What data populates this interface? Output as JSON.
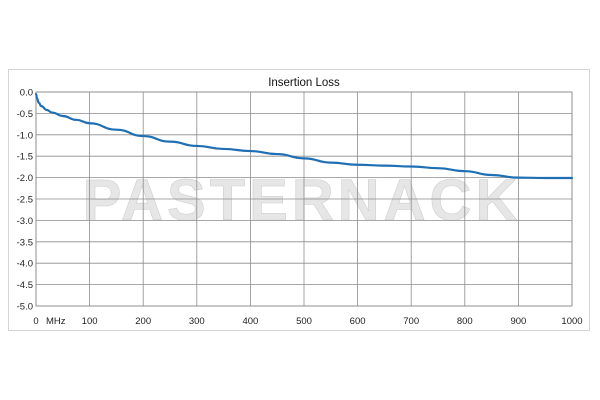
{
  "chart_data": {
    "type": "line",
    "title": "Insertion Loss",
    "xlabel": "MHz",
    "ylabel": "",
    "xlim": [
      0,
      1000
    ],
    "ylim": [
      -5.0,
      0.0
    ],
    "x_ticks": [
      "0",
      "100",
      "200",
      "300",
      "400",
      "500",
      "600",
      "700",
      "800",
      "900",
      "1000"
    ],
    "y_ticks": [
      "0.0",
      "-0.5",
      "-1.0",
      "-1.5",
      "-2.0",
      "-2.5",
      "-3.0",
      "-3.5",
      "-4.0",
      "-4.5",
      "-5.0"
    ],
    "grid": true,
    "series": [
      {
        "color": "#1f6fb4",
        "x": [
          0,
          2,
          5,
          10,
          20,
          30,
          50,
          75,
          100,
          150,
          200,
          250,
          300,
          350,
          400,
          450,
          500,
          550,
          600,
          650,
          700,
          750,
          800,
          850,
          900,
          950,
          1000
        ],
        "y": [
          -0.05,
          -0.15,
          -0.25,
          -0.33,
          -0.42,
          -0.48,
          -0.56,
          -0.65,
          -0.73,
          -0.88,
          -1.03,
          -1.16,
          -1.26,
          -1.33,
          -1.38,
          -1.45,
          -1.55,
          -1.65,
          -1.7,
          -1.72,
          -1.74,
          -1.78,
          -1.85,
          -1.94,
          -2.0,
          -2.01,
          -2.01
        ]
      }
    ]
  },
  "watermark": "PASTERNACK"
}
